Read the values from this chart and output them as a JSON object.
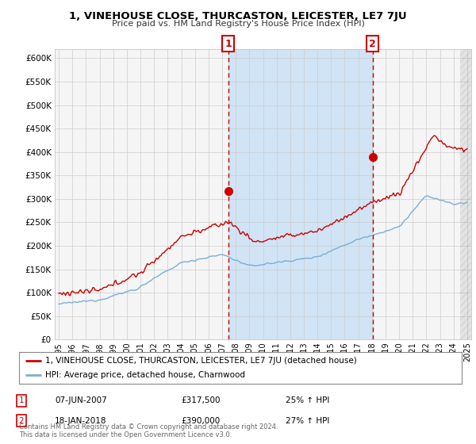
{
  "title": "1, VINEHOUSE CLOSE, THURCASTON, LEICESTER, LE7 7JU",
  "subtitle": "Price paid vs. HM Land Registry's House Price Index (HPI)",
  "footer": "Contains HM Land Registry data © Crown copyright and database right 2024.\nThis data is licensed under the Open Government Licence v3.0.",
  "legend_line1": "1, VINEHOUSE CLOSE, THURCASTON, LEICESTER, LE7 7JU (detached house)",
  "legend_line2": "HPI: Average price, detached house, Charnwood",
  "sale1_date": "07-JUN-2007",
  "sale1_price": "£317,500",
  "sale1_hpi": "25% ↑ HPI",
  "sale2_date": "18-JAN-2018",
  "sale2_price": "£390,000",
  "sale2_hpi": "27% ↑ HPI",
  "red_color": "#cc0000",
  "blue_color": "#7aafd4",
  "shade_color": "#d0e4f5",
  "bg_color": "#f5f5f5",
  "grid_color": "#cccccc",
  "ylim": [
    0,
    620000
  ],
  "yticks": [
    0,
    50000,
    100000,
    150000,
    200000,
    250000,
    300000,
    350000,
    400000,
    450000,
    500000,
    550000,
    600000
  ],
  "sale1_x": 2007.44,
  "sale1_y": 317500,
  "sale2_x": 2018.05,
  "sale2_y": 390000,
  "xlim": [
    1994.7,
    2025.3
  ],
  "hatch_start": 2024.5
}
